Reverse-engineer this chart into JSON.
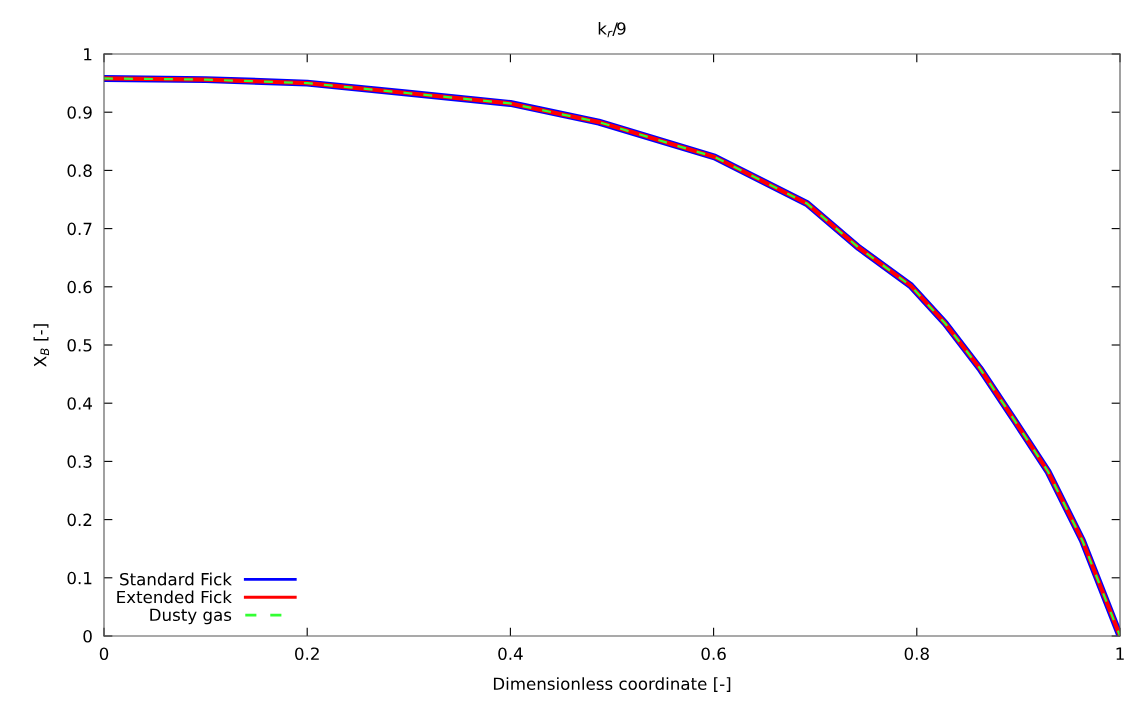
{
  "chart_data": {
    "type": "line",
    "title": "k$_{r}$/9",
    "xlabel": "Dimensionless coordinate [-]",
    "ylabel": "X$_{B}$ [-]",
    "x": [
      0,
      0.1,
      0.2,
      0.298,
      0.4,
      0.487,
      0.601,
      0.692,
      0.743,
      0.794,
      0.828,
      0.862,
      0.896,
      0.929,
      0.963,
      1.0
    ],
    "series": [
      {
        "name": "Standard Fick",
        "color": "#0000ff",
        "line_style": "solid",
        "values": [
          0.958,
          0.956,
          0.95,
          0.933,
          0.915,
          0.883,
          0.823,
          0.743,
          0.667,
          0.602,
          0.537,
          0.46,
          0.371,
          0.283,
          0.164,
          0
        ]
      },
      {
        "name": "Extended Fick",
        "color": "#ff0000",
        "line_style": "solid",
        "values": [
          0.958,
          0.956,
          0.95,
          0.933,
          0.915,
          0.883,
          0.823,
          0.743,
          0.667,
          0.602,
          0.537,
          0.46,
          0.371,
          0.283,
          0.164,
          0
        ]
      },
      {
        "name": "Dusty gas",
        "color": "#33ff33",
        "line_style": "dashed",
        "values": [
          0.958,
          0.956,
          0.95,
          0.933,
          0.915,
          0.883,
          0.823,
          0.743,
          0.667,
          0.602,
          0.537,
          0.46,
          0.371,
          0.283,
          0.164,
          0
        ]
      }
    ],
    "xlim": [
      0,
      1
    ],
    "xticks": [
      0,
      0.2,
      0.4,
      0.6,
      0.8,
      1
    ],
    "ylim": [
      0,
      1
    ],
    "yticks": [
      0,
      0.1,
      0.2,
      0.3,
      0.4,
      0.5,
      0.6,
      0.7,
      0.8,
      0.9,
      1
    ],
    "legend": "bottom left",
    "grid": false,
    "marker": "none"
  }
}
